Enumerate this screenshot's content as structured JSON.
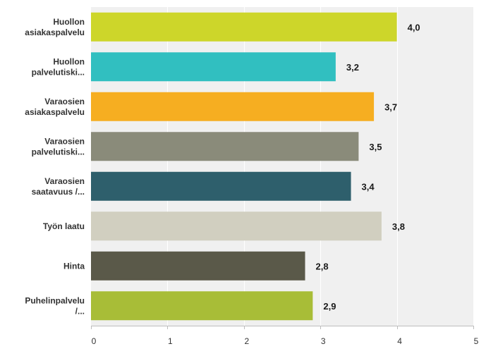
{
  "chart_data": {
    "type": "bar",
    "orientation": "horizontal",
    "categories": [
      [
        "Huollon",
        "asiakaspalvelu"
      ],
      [
        "Huollon",
        "palvelutiski..."
      ],
      [
        "Varaosien",
        "asiakaspalvelu"
      ],
      [
        "Varaosien",
        "palvelutiski..."
      ],
      [
        "Varaosien",
        "saatavuus /..."
      ],
      [
        "Työn laatu"
      ],
      [
        "Hinta"
      ],
      [
        "Puhelinpalvelu",
        "/..."
      ]
    ],
    "values": [
      4.0,
      3.2,
      3.7,
      3.5,
      3.4,
      3.8,
      2.8,
      2.9
    ],
    "value_labels": [
      "4,0",
      "3,2",
      "3,7",
      "3,5",
      "3,4",
      "3,8",
      "2,8",
      "2,9"
    ],
    "colors": [
      "#cdd62a",
      "#31bfc0",
      "#f6ae21",
      "#8a8b7a",
      "#2e5f6c",
      "#d1cfc0",
      "#5a5949",
      "#a8bd37"
    ],
    "xlim": [
      0,
      5
    ],
    "xticks": [
      "0",
      "1",
      "2",
      "3",
      "4",
      "5"
    ],
    "title": "",
    "xlabel": "",
    "ylabel": "",
    "grid": true,
    "background": "#f0f0f0"
  }
}
